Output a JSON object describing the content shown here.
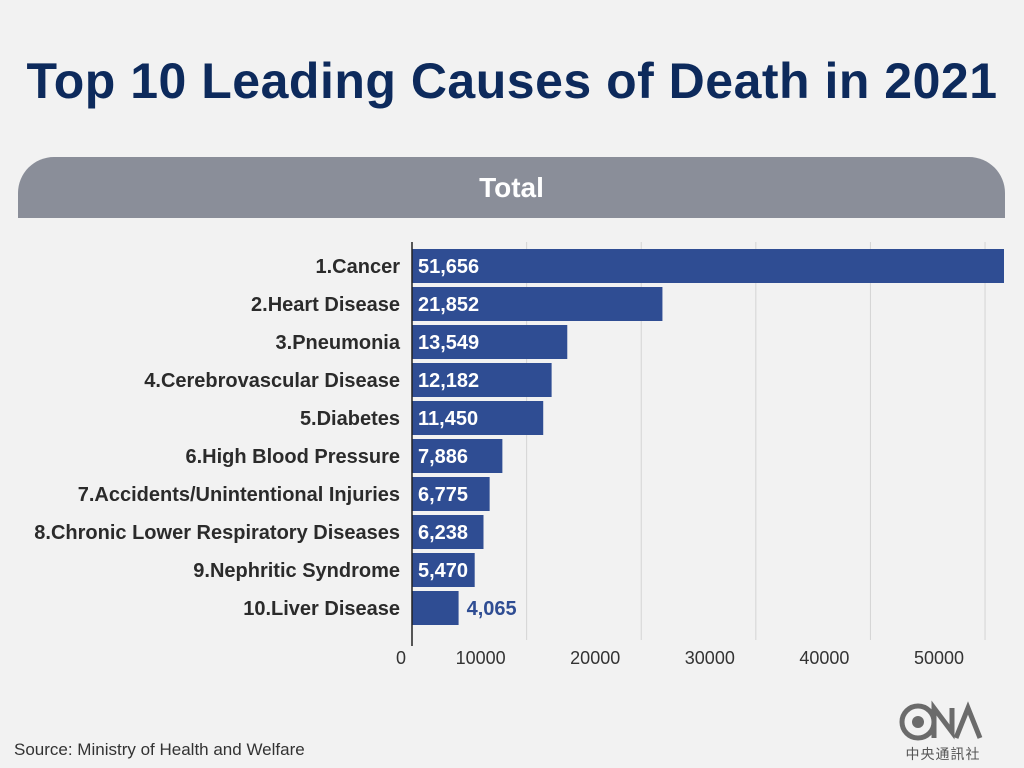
{
  "title": "Top 10 Leading Causes of Death in 2021",
  "banner": "Total",
  "source": "Source: Ministry of Health and Welfare",
  "logo": {
    "mark": "CNA",
    "text": "中央通訊社"
  },
  "colors": {
    "bar": "#2f4d93",
    "title": "#0d2a5c",
    "banner": "#8a8e99",
    "grid": "#d4d4d4"
  },
  "chart_data": {
    "type": "bar",
    "orientation": "horizontal",
    "categories": [
      "1.Cancer",
      "2.Heart Disease",
      "3.Pneumonia",
      "4.Cerebrovascular Disease",
      "5.Diabetes",
      "6.High Blood Pressure",
      "7.Accidents/Unintentional Injuries",
      "8.Chronic Lower Respiratory Diseases",
      "9.Nephritic Syndrome",
      "10.Liver Disease"
    ],
    "values": [
      51656,
      21852,
      13549,
      12182,
      11450,
      7886,
      6775,
      6238,
      5470,
      4065
    ],
    "value_labels": [
      "51,656",
      "21,852",
      "13,549",
      "12,182",
      "11,450",
      "7,886",
      "6,775",
      "6,238",
      "5,470",
      "4,065"
    ],
    "x_ticks": [
      0,
      10000,
      20000,
      30000,
      40000,
      50000
    ],
    "x_tick_labels": [
      "0",
      "10000",
      "20000",
      "30000",
      "40000",
      "50000"
    ],
    "xlim": [
      0,
      51656
    ],
    "title": "Top 10 Leading Causes of Death in 2021",
    "subtitle": "Total",
    "xlabel": "",
    "ylabel": "",
    "grid": true,
    "legend": "none"
  }
}
